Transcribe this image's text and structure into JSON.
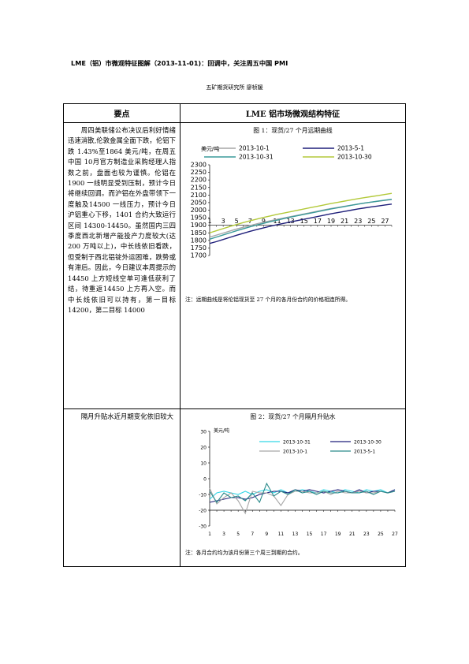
{
  "header": {
    "title": "LME（铝）市微观特征图解（2013-11-01)：回调中，关注周五中国 PMI",
    "author": "五矿期货研究所  廖桢媛"
  },
  "table": {
    "col_left": "要点",
    "col_right": "LME 铝市场微观结构特征",
    "row1_text": "周四美联储公布决议后利好情绪迅速消散,伦敦金属全面下跌，伦铝下跌 1.43%至1864 美元/吨，在周五中国 10月官方制造业采购经理人指数之前，盘面也较为谨慎。伦铝在 1900 一线明显受到压制，预计今日将继续回调。而沪铝在外盘带领下一度触及14500 一线压力，预计今日沪铝重心下移，1401 合约大致运行区间 14300-14450。虽然国内三四季度西北新增产能投产力度较大(达 200 万吨以上)，中长线依旧看跌，但受制于西北铝锭外运困难，跌势或有滞后。因此，今日建议本周提示的 14450 上方短线空单可逢低获利了结，待重返14450 上方再入空。而中长线依旧可以持有，第一目标14200，第二目标 14000",
    "row2_text": "隔月升贴水近月期变化依旧较大",
    "chart1_title": "图 1：现货/27 个月远期曲线",
    "chart1_note": "注：远期曲线是将伦铝现货至 27 个月的各月份合约的价格相连所得。",
    "chart2_title": "图 2：现货/27 个月隔月升贴水",
    "chart2_note": "注：各月合约均为该月份第三个周三到期的合约。"
  },
  "chart_data": [
    {
      "type": "line",
      "title": "图 1：现货/27 个月远期曲线",
      "ylabel": "美元/吨",
      "ylim": [
        1700,
        2300
      ],
      "yticks": [
        1700,
        1750,
        1800,
        1850,
        1900,
        1950,
        2000,
        2050,
        2100,
        2150,
        2200,
        2250,
        2300
      ],
      "xticks": [
        1,
        3,
        5,
        7,
        9,
        11,
        13,
        15,
        17,
        19,
        21,
        23,
        25,
        27
      ],
      "x": [
        1,
        2,
        3,
        4,
        5,
        6,
        7,
        8,
        9,
        10,
        11,
        12,
        13,
        14,
        15,
        16,
        17,
        18,
        19,
        20,
        21,
        22,
        23,
        24,
        25,
        26,
        27,
        28
      ],
      "series": [
        {
          "name": "2013-10-1",
          "color": "#a6a6a6",
          "values": [
            1822,
            1835,
            1848,
            1862,
            1875,
            1887,
            1898,
            1910,
            1920,
            1930,
            1939,
            1948,
            1957,
            1966,
            1975,
            1984,
            1993,
            2002,
            2011,
            2018,
            2026,
            2033,
            2040,
            2047,
            2053,
            2059,
            2065,
            2071
          ]
        },
        {
          "name": "2013-5-1",
          "color": "#1f1f7a",
          "values": [
            1780,
            1792,
            1806,
            1820,
            1834,
            1847,
            1860,
            1872,
            1883,
            1894,
            1904,
            1913,
            1922,
            1931,
            1940,
            1949,
            1958,
            1967,
            1976,
            1984,
            1992,
            2000,
            2008,
            2015,
            2022,
            2028,
            2034,
            2040
          ]
        },
        {
          "name": "2013-10-31",
          "color": "#3a9a9a",
          "values": [
            1808,
            1822,
            1836,
            1850,
            1864,
            1877,
            1890,
            1902,
            1913,
            1924,
            1934,
            1944,
            1954,
            1963,
            1972,
            1981,
            1990,
            1999,
            2008,
            2016,
            2024,
            2032,
            2040,
            2047,
            2054,
            2060,
            2066,
            2072
          ]
        },
        {
          "name": "2013-10-30",
          "color": "#b3c93a",
          "values": [
            1850,
            1864,
            1878,
            1892,
            1905,
            1918,
            1930,
            1941,
            1952,
            1962,
            1972,
            1981,
            1990,
            1999,
            2008,
            2017,
            2026,
            2035,
            2044,
            2052,
            2060,
            2068,
            2076,
            2083,
            2090,
            2097,
            2104,
            2111
          ]
        }
      ]
    },
    {
      "type": "line",
      "title": "图 2：现货/27 个月隔月升贴水",
      "ylabel": "美元/吨",
      "ylim": [
        -30,
        30
      ],
      "yticks": [
        -30,
        -20,
        -10,
        0,
        10,
        20,
        30
      ],
      "xticks": [
        1,
        3,
        5,
        7,
        9,
        11,
        13,
        15,
        17,
        19,
        21,
        23,
        25,
        27
      ],
      "x": [
        1,
        2,
        3,
        4,
        5,
        6,
        7,
        8,
        9,
        10,
        11,
        12,
        13,
        14,
        15,
        16,
        17,
        18,
        19,
        20,
        21,
        22,
        23,
        24,
        25,
        26,
        27
      ],
      "series": [
        {
          "name": "2013-10-31",
          "color": "#33d6e6",
          "values": [
            -13,
            -9,
            -8,
            -9,
            -10,
            -8,
            -10,
            -8,
            -7,
            -9,
            -7,
            -9,
            -8,
            -7,
            -8,
            -9,
            -7,
            -8,
            -9,
            -7,
            -8,
            -9,
            -7,
            -8,
            -7,
            -9,
            -7
          ]
        },
        {
          "name": "2013-10-30",
          "color": "#1f1f7a",
          "values": [
            -15,
            -14,
            -13,
            -12,
            -12,
            -13,
            -12,
            -10,
            -9,
            -8,
            -8,
            -9,
            -7,
            -8,
            -7,
            -8,
            -9,
            -8,
            -7,
            -8,
            -9,
            -7,
            -9,
            -8,
            -8,
            -9,
            -7
          ]
        },
        {
          "name": "2013-10-1",
          "color": "#a6a6a6",
          "values": [
            -6,
            -16,
            -12,
            -9,
            -14,
            -22,
            -8,
            -9,
            -9,
            -11,
            -17,
            -10,
            -8,
            -8,
            -9,
            -9,
            -8,
            -10,
            -8,
            -9,
            -9,
            -8,
            -9,
            -9,
            -8,
            -9,
            -8
          ]
        },
        {
          "name": "2013-5-1",
          "color": "#2a8a8a",
          "values": [
            -8,
            -15,
            -9,
            -12,
            -11,
            -14,
            -9,
            -15,
            -3,
            -11,
            -8,
            -10,
            -7,
            -9,
            -8,
            -10,
            -8,
            -9,
            -9,
            -8,
            -9,
            -9,
            -8,
            -10,
            -8,
            -9,
            -8
          ]
        }
      ]
    }
  ]
}
